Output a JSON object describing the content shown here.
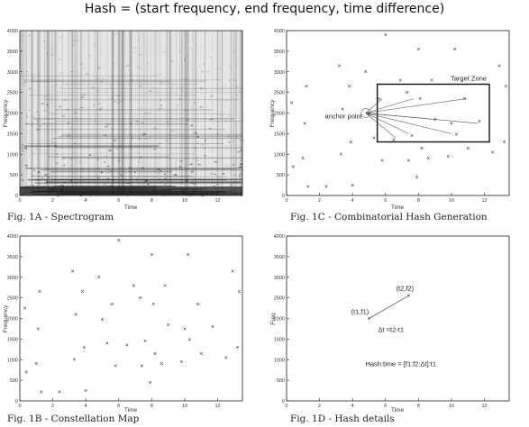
{
  "title": "Hash = (start frequency, end frequency, time difference)",
  "charts": {
    "spectrogram": {
      "caption": "Fig. 1A - Spectrogram",
      "xlabel": "Time",
      "ylabel": "Frequency"
    },
    "hash_gen": {
      "caption": "Fig. 1C - Combinatorial Hash Generation",
      "xlabel": "Time",
      "ylabel": "Frequency",
      "anchor_label": "anchor point",
      "zone_label": "Target Zone"
    },
    "constellation": {
      "caption": "Fig. 1B - Constellation Map",
      "xlabel": "Time",
      "ylabel": "Frequency"
    },
    "details": {
      "caption": "Fig. 1D - Hash details",
      "xlabel": "Time",
      "ylabel": "Freq",
      "p1_label": "(t1,f1)",
      "p2_label": "(t2,f2)",
      "dt_label": "Δt =t2-t1",
      "hash_label": "Hash:time = [f1:f2:Δt]:t1"
    }
  },
  "chart_data": [
    {
      "id": "spectrogram",
      "type": "heatmap",
      "title": "Fig. 1A - Spectrogram",
      "xlabel": "Time",
      "ylabel": "Frequency",
      "xlim": [
        0,
        13.5
      ],
      "ylim": [
        0,
        4000
      ],
      "xticks": [
        0,
        2,
        4,
        6,
        8,
        10,
        12
      ],
      "yticks": [
        0,
        500,
        1000,
        1500,
        2000,
        2500,
        3000,
        3500,
        4000
      ]
    },
    {
      "id": "constellation",
      "type": "scatter",
      "title": "Fig. 1B - Constellation Map",
      "xlabel": "Time",
      "ylabel": "Frequency",
      "xlim": [
        0,
        13.5
      ],
      "ylim": [
        0,
        4000
      ],
      "xticks": [
        0,
        2,
        4,
        6,
        8,
        10,
        12
      ],
      "yticks": [
        0,
        500,
        1000,
        1500,
        2000,
        2500,
        3000,
        3500,
        4000
      ],
      "marker": "x",
      "points": [
        [
          0.3,
          2250
        ],
        [
          0.4,
          700
        ],
        [
          1.0,
          900
        ],
        [
          1.1,
          1750
        ],
        [
          1.2,
          2650
        ],
        [
          1.3,
          220
        ],
        [
          2.4,
          220
        ],
        [
          3.2,
          3150
        ],
        [
          3.3,
          1000
        ],
        [
          3.4,
          2100
        ],
        [
          3.8,
          2650
        ],
        [
          3.9,
          1300
        ],
        [
          4.0,
          250
        ],
        [
          4.8,
          3000
        ],
        [
          5.0,
          1980
        ],
        [
          5.3,
          1400
        ],
        [
          5.6,
          2350
        ],
        [
          5.8,
          850
        ],
        [
          6.0,
          3900
        ],
        [
          6.5,
          1350
        ],
        [
          6.9,
          2800
        ],
        [
          7.3,
          2500
        ],
        [
          7.4,
          850
        ],
        [
          7.6,
          1450
        ],
        [
          7.9,
          450
        ],
        [
          8.0,
          3550
        ],
        [
          8.1,
          2350
        ],
        [
          8.2,
          1150
        ],
        [
          8.6,
          900
        ],
        [
          8.8,
          2800
        ],
        [
          9.0,
          1850
        ],
        [
          9.8,
          950
        ],
        [
          10.0,
          1750
        ],
        [
          10.2,
          3550
        ],
        [
          10.3,
          1480
        ],
        [
          10.8,
          2350
        ],
        [
          11.0,
          1150
        ],
        [
          11.7,
          1800
        ],
        [
          12.5,
          1050
        ],
        [
          12.9,
          3150
        ],
        [
          13.2,
          1300
        ],
        [
          13.3,
          2650
        ]
      ]
    },
    {
      "id": "hash_gen",
      "type": "scatter",
      "title": "Fig. 1C - Combinatorial Hash Generation",
      "xlabel": "Time",
      "ylabel": "Frequency",
      "xlim": [
        0,
        13.5
      ],
      "ylim": [
        0,
        4000
      ],
      "xticks": [
        0,
        2,
        4,
        6,
        8,
        10,
        12
      ],
      "yticks": [
        0,
        500,
        1000,
        1500,
        2000,
        2500,
        3000,
        3500,
        4000
      ],
      "anchor": [
        4.8,
        2000
      ],
      "target_zone": {
        "t": [
          5.5,
          12.3
        ],
        "f": [
          1300,
          2700
        ]
      },
      "targets": [
        [
          5.8,
          2350
        ],
        [
          6.1,
          1950
        ],
        [
          6.6,
          1400
        ],
        [
          7.4,
          1500
        ],
        [
          7.7,
          2350
        ],
        [
          8.8,
          1850
        ],
        [
          10.0,
          1500
        ],
        [
          10.9,
          2350
        ],
        [
          11.6,
          1750
        ]
      ]
    },
    {
      "id": "details",
      "type": "line",
      "title": "Fig. 1D - Hash details",
      "xlabel": "Time",
      "ylabel": "Freq",
      "xlim": [
        0,
        13.5
      ],
      "ylim": [
        0,
        4000
      ],
      "xticks": [
        0,
        2,
        4,
        6,
        8,
        10,
        12
      ],
      "yticks": [
        0,
        500,
        1000,
        1500,
        2000,
        2500,
        3000,
        3500,
        4000
      ],
      "points": [
        [
          5.0,
          2000
        ],
        [
          7.4,
          2550
        ]
      ]
    }
  ]
}
